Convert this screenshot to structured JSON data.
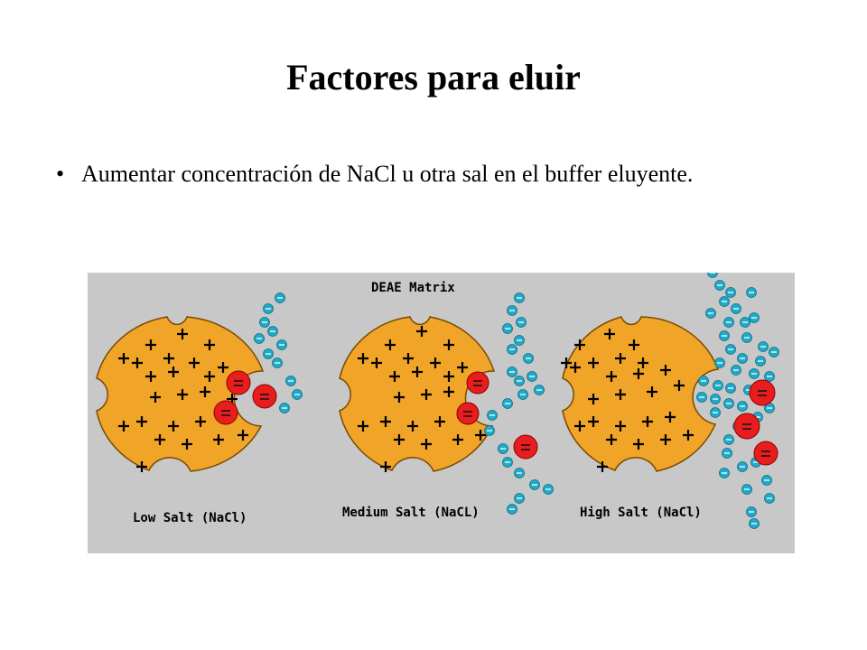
{
  "slide": {
    "title": "Factores para eluir",
    "bullet": "Aumentar concentración de NaCl u otra sal en el buffer eluyente."
  },
  "figure": {
    "matrix_label": "DEAE Matrix",
    "panels": [
      {
        "label": "Low Salt (NaCl)"
      },
      {
        "label": "Medium Salt (NaCL)"
      },
      {
        "label": "High Salt (NaCl)"
      }
    ],
    "colors": {
      "background": "#c8c8c8",
      "bead": "#f0a428",
      "bead_outline": "#7a4a00",
      "protein": "#e81e1e",
      "salt_ion": "#20aac8"
    }
  }
}
